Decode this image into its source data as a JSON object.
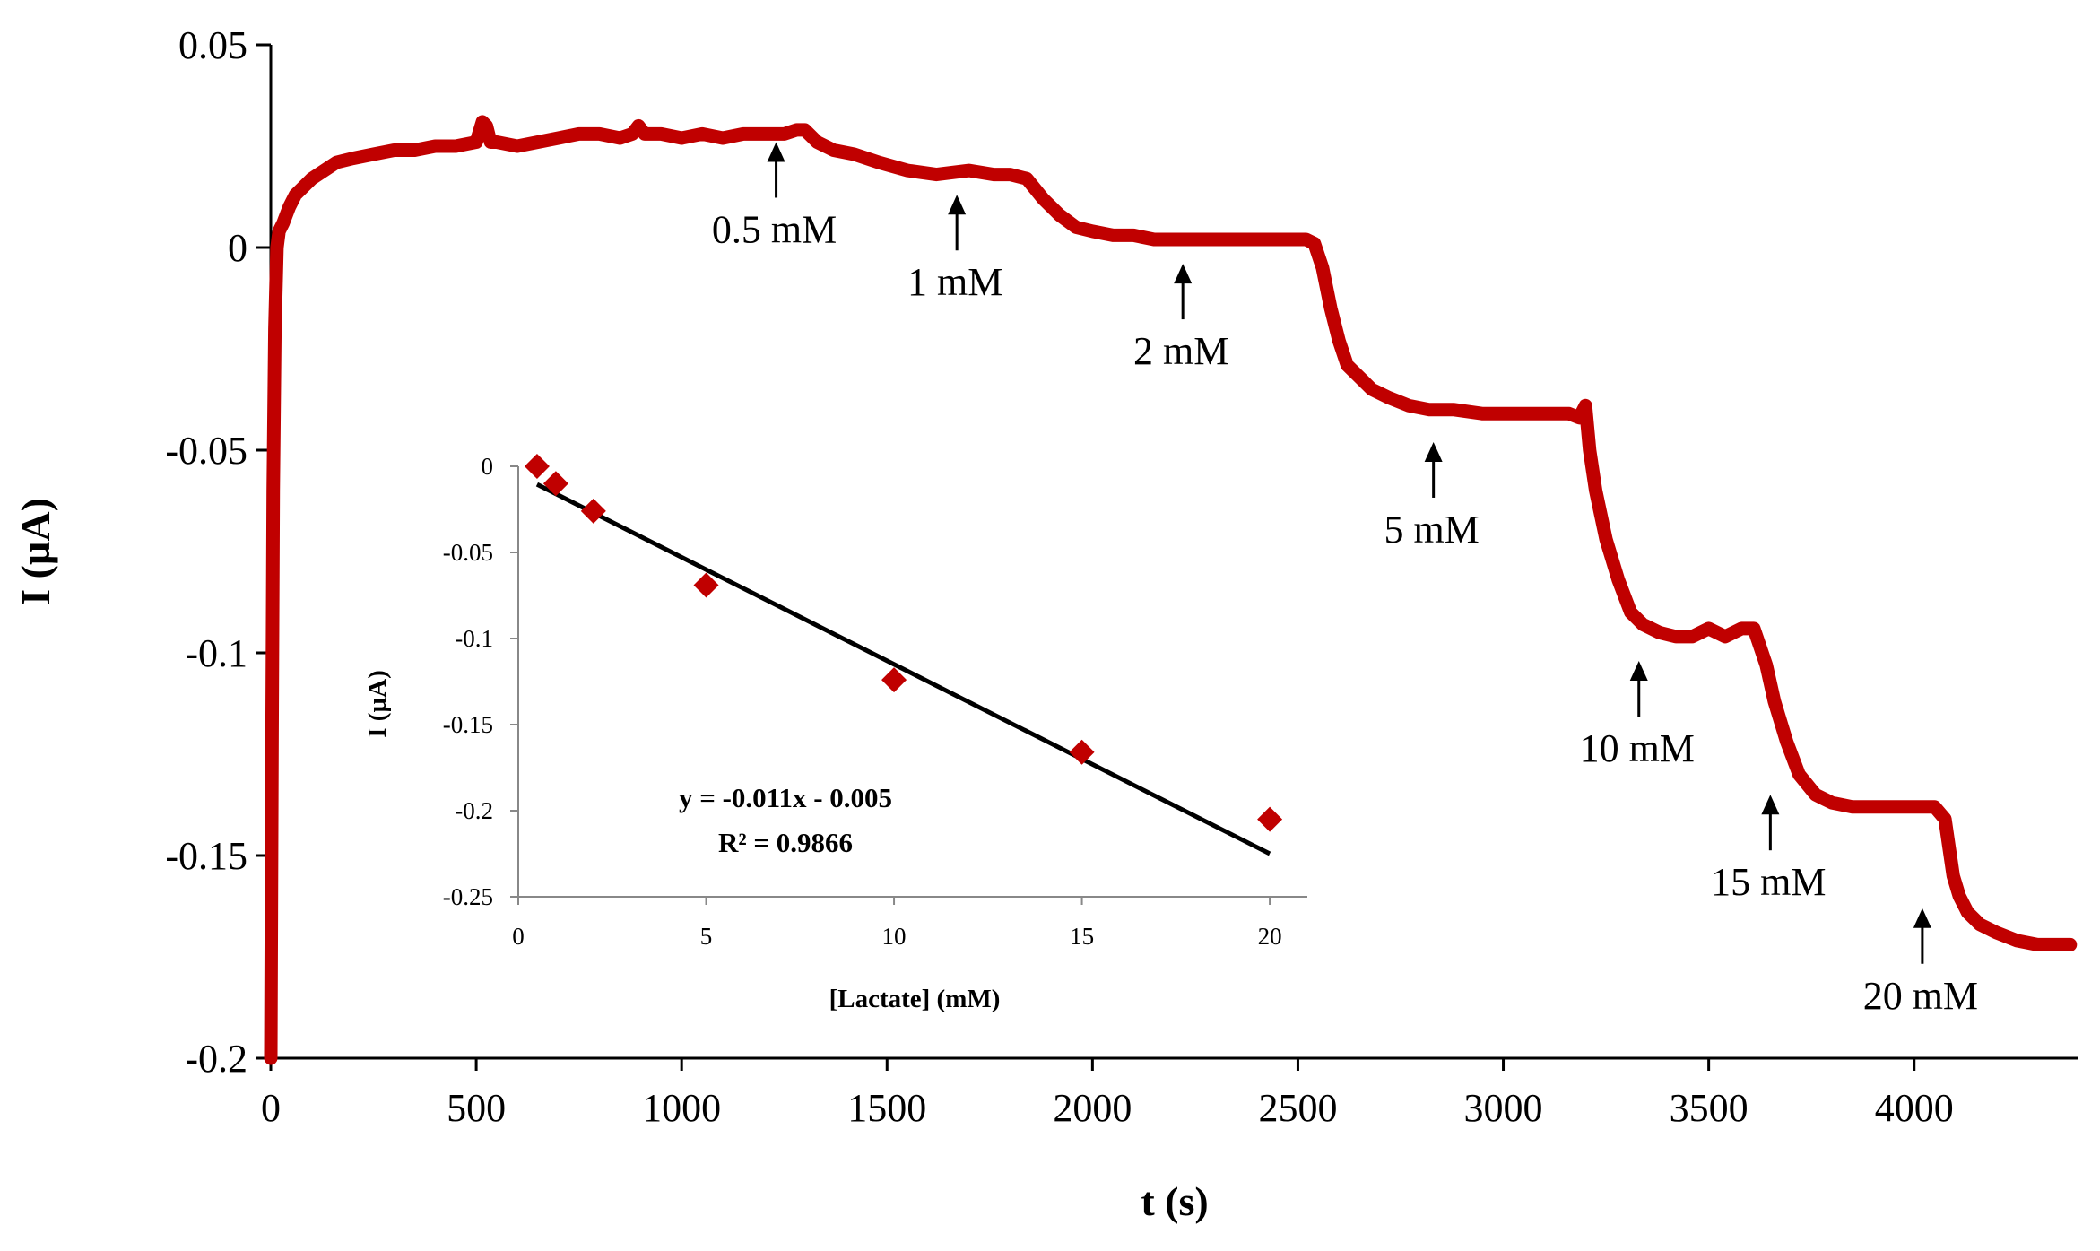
{
  "chart_data": [
    {
      "type": "line",
      "xlabel": "t (s)",
      "ylabel": "I (µA)",
      "xlim": [
        0,
        4400
      ],
      "ylim": [
        -0.2,
        0.05
      ],
      "xticks": [
        0,
        500,
        1000,
        1500,
        2000,
        2500,
        3000,
        3500,
        4000
      ],
      "yticks": [
        0.05,
        0,
        -0.05,
        -0.1,
        -0.15,
        -0.2
      ],
      "ytick_labels": [
        "0.05",
        "0",
        "-0.05",
        "-0.1",
        "-0.15",
        "-0.2"
      ],
      "series_color": "#c00000",
      "series": [
        {
          "x": [
            0,
            3,
            6,
            10,
            15,
            20,
            30,
            45,
            60,
            80,
            100,
            130,
            160,
            200,
            250,
            300,
            350,
            400,
            450,
            500,
            515,
            525,
            535,
            550,
            600,
            650,
            700,
            750,
            800,
            850,
            880,
            895,
            910,
            950,
            1000,
            1050,
            1100,
            1150,
            1200,
            1250,
            1280,
            1300,
            1330,
            1370,
            1420,
            1480,
            1550,
            1620,
            1700,
            1760,
            1800,
            1840,
            1880,
            1920,
            1960,
            2000,
            2050,
            2100,
            2150,
            2200,
            2250,
            2300,
            2350,
            2400,
            2450,
            2500,
            2520,
            2540,
            2560,
            2580,
            2600,
            2620,
            2650,
            2680,
            2720,
            2770,
            2820,
            2880,
            2950,
            3020,
            3100,
            3160,
            3185,
            3200,
            3210,
            3225,
            3250,
            3280,
            3310,
            3340,
            3380,
            3420,
            3460,
            3500,
            3540,
            3580,
            3610,
            3620,
            3640,
            3660,
            3690,
            3720,
            3760,
            3800,
            3850,
            3900,
            3950,
            4000,
            4050,
            4075,
            4085,
            4095,
            4110,
            4130,
            4160,
            4200,
            4250,
            4300,
            4350,
            4380
          ],
          "y": [
            -0.2,
            -0.12,
            -0.06,
            -0.02,
            0.0,
            0.004,
            0.006,
            0.01,
            0.013,
            0.015,
            0.017,
            0.019,
            0.021,
            0.022,
            0.023,
            0.024,
            0.024,
            0.025,
            0.025,
            0.026,
            0.031,
            0.03,
            0.026,
            0.026,
            0.025,
            0.026,
            0.027,
            0.028,
            0.028,
            0.027,
            0.028,
            0.03,
            0.028,
            0.028,
            0.027,
            0.028,
            0.027,
            0.028,
            0.028,
            0.028,
            0.029,
            0.029,
            0.026,
            0.024,
            0.023,
            0.021,
            0.019,
            0.018,
            0.019,
            0.018,
            0.018,
            0.017,
            0.012,
            0.008,
            0.005,
            0.004,
            0.003,
            0.003,
            0.002,
            0.002,
            0.002,
            0.002,
            0.002,
            0.002,
            0.002,
            0.002,
            0.002,
            0.001,
            -0.005,
            -0.015,
            -0.023,
            -0.029,
            -0.032,
            -0.035,
            -0.037,
            -0.039,
            -0.04,
            -0.04,
            -0.041,
            -0.041,
            -0.041,
            -0.041,
            -0.042,
            -0.039,
            -0.05,
            -0.06,
            -0.072,
            -0.082,
            -0.09,
            -0.093,
            -0.095,
            -0.096,
            -0.096,
            -0.094,
            -0.096,
            -0.094,
            -0.094,
            -0.097,
            -0.103,
            -0.112,
            -0.122,
            -0.13,
            -0.135,
            -0.137,
            -0.138,
            -0.138,
            -0.138,
            -0.138,
            -0.138,
            -0.141,
            -0.148,
            -0.155,
            -0.16,
            -0.164,
            -0.167,
            -0.169,
            -0.171,
            -0.172,
            -0.172,
            -0.172
          ]
        }
      ],
      "annotations": [
        {
          "label": "0.5 mM",
          "x": 1230,
          "y": 0.026
        },
        {
          "label": "1 mM",
          "x": 1670,
          "y": 0.013
        },
        {
          "label": "2 mM",
          "x": 2220,
          "y": -0.004
        },
        {
          "label": "5 mM",
          "x": 2830,
          "y": -0.048
        },
        {
          "label": "10 mM",
          "x": 3330,
          "y": -0.102
        },
        {
          "label": "15 mM",
          "x": 3650,
          "y": -0.135
        },
        {
          "label": "20 mM",
          "x": 4020,
          "y": -0.163
        }
      ]
    },
    {
      "type": "scatter",
      "xlabel": "[Lactate] (mM)",
      "ylabel": "I (µA)",
      "xlim": [
        0,
        21
      ],
      "ylim": [
        -0.25,
        0
      ],
      "xticks": [
        0,
        5,
        10,
        15,
        20
      ],
      "yticks": [
        0,
        -0.05,
        -0.1,
        -0.15,
        -0.2,
        -0.25
      ],
      "ytick_labels": [
        "0",
        "-0.05",
        "-0.1",
        "-0.15",
        "-0.2",
        "-0.25"
      ],
      "marker_color": "#c00000",
      "x": [
        0.5,
        1,
        2,
        5,
        10,
        15,
        20
      ],
      "y": [
        0.0,
        -0.01,
        -0.026,
        -0.069,
        -0.124,
        -0.166,
        -0.205
      ],
      "trendline": {
        "slope": -0.011,
        "intercept": -0.005,
        "x_range": [
          0.5,
          20
        ],
        "color": "#000000"
      },
      "equation": "y = -0.011x - 0.005",
      "r_squared": "R² = 0.9866"
    }
  ]
}
